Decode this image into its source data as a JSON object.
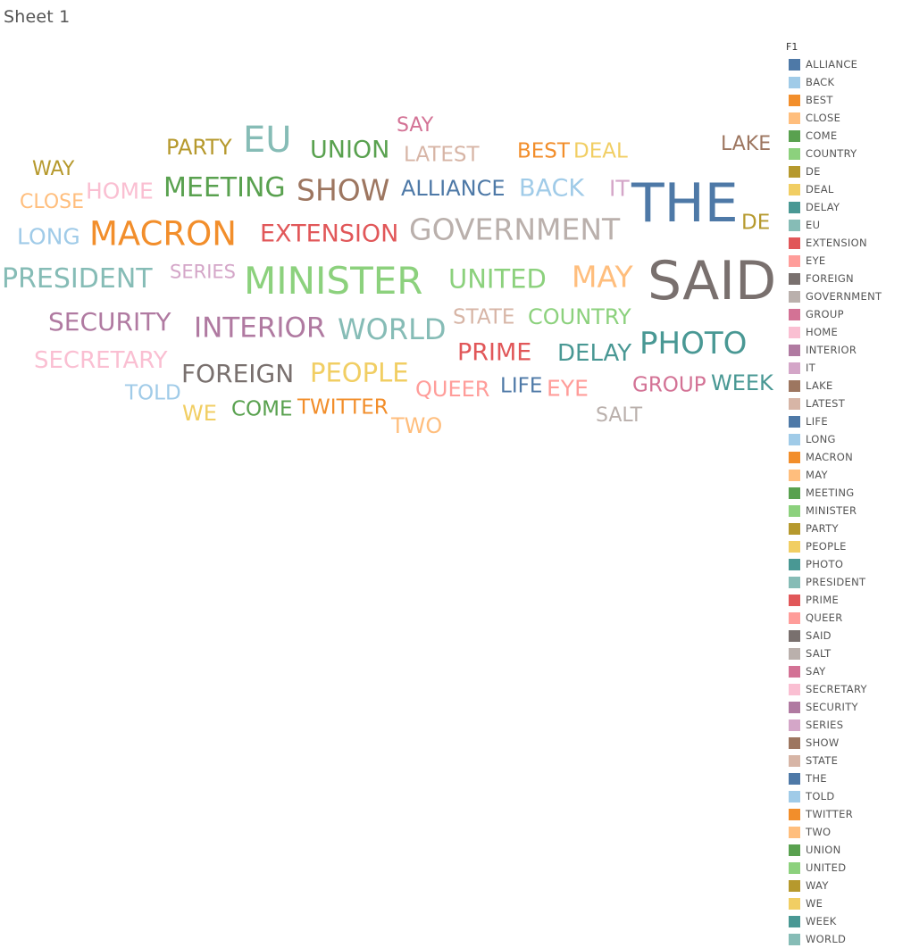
{
  "sheet": {
    "title": "Sheet 1"
  },
  "legend": {
    "title": "F1",
    "items": [
      {
        "label": "ALLIANCE",
        "color": "#4e79a7"
      },
      {
        "label": "BACK",
        "color": "#a0cbe8"
      },
      {
        "label": "BEST",
        "color": "#f28e2b"
      },
      {
        "label": "CLOSE",
        "color": "#ffbe7d"
      },
      {
        "label": "COME",
        "color": "#59a14f"
      },
      {
        "label": "COUNTRY",
        "color": "#8cd17d"
      },
      {
        "label": "DE",
        "color": "#b6992d"
      },
      {
        "label": "DEAL",
        "color": "#f1ce63"
      },
      {
        "label": "DELAY",
        "color": "#499894"
      },
      {
        "label": "EU",
        "color": "#86bcb6"
      },
      {
        "label": "EXTENSION",
        "color": "#e15759"
      },
      {
        "label": "EYE",
        "color": "#ff9d9a"
      },
      {
        "label": "FOREIGN",
        "color": "#79706e"
      },
      {
        "label": "GOVERNMENT",
        "color": "#bab0ac"
      },
      {
        "label": "GROUP",
        "color": "#d37295"
      },
      {
        "label": "HOME",
        "color": "#fabfd2"
      },
      {
        "label": "INTERIOR",
        "color": "#b07aa1"
      },
      {
        "label": "IT",
        "color": "#d4a6c8"
      },
      {
        "label": "LAKE",
        "color": "#9d7660"
      },
      {
        "label": "LATEST",
        "color": "#d7b5a6"
      },
      {
        "label": "LIFE",
        "color": "#4e79a7"
      },
      {
        "label": "LONG",
        "color": "#a0cbe8"
      },
      {
        "label": "MACRON",
        "color": "#f28e2b"
      },
      {
        "label": "MAY",
        "color": "#ffbe7d"
      },
      {
        "label": "MEETING",
        "color": "#59a14f"
      },
      {
        "label": "MINISTER",
        "color": "#8cd17d"
      },
      {
        "label": "PARTY",
        "color": "#b6992d"
      },
      {
        "label": "PEOPLE",
        "color": "#f1ce63"
      },
      {
        "label": "PHOTO",
        "color": "#499894"
      },
      {
        "label": "PRESIDENT",
        "color": "#86bcb6"
      },
      {
        "label": "PRIME",
        "color": "#e15759"
      },
      {
        "label": "QUEER",
        "color": "#ff9d9a"
      },
      {
        "label": "SAID",
        "color": "#79706e"
      },
      {
        "label": "SALT",
        "color": "#bab0ac"
      },
      {
        "label": "SAY",
        "color": "#d37295"
      },
      {
        "label": "SECRETARY",
        "color": "#fabfd2"
      },
      {
        "label": "SECURITY",
        "color": "#b07aa1"
      },
      {
        "label": "SERIES",
        "color": "#d4a6c8"
      },
      {
        "label": "SHOW",
        "color": "#9d7660"
      },
      {
        "label": "STATE",
        "color": "#d7b5a6"
      },
      {
        "label": "THE",
        "color": "#4e79a7"
      },
      {
        "label": "TOLD",
        "color": "#a0cbe8"
      },
      {
        "label": "TWITTER",
        "color": "#f28e2b"
      },
      {
        "label": "TWO",
        "color": "#ffbe7d"
      },
      {
        "label": "UNION",
        "color": "#59a14f"
      },
      {
        "label": "UNITED",
        "color": "#8cd17d"
      },
      {
        "label": "WAY",
        "color": "#b6992d"
      },
      {
        "label": "WE",
        "color": "#f1ce63"
      },
      {
        "label": "WEEK",
        "color": "#499894"
      },
      {
        "label": "WORLD",
        "color": "#86bcb6"
      }
    ]
  },
  "chart_data": {
    "type": "word-cloud",
    "legend_field": "F1",
    "legend_placement": "right",
    "words": [
      {
        "word": "ALLIANCE",
        "color": "#4e79a7"
      },
      {
        "word": "BACK",
        "color": "#a0cbe8"
      },
      {
        "word": "BEST",
        "color": "#f28e2b"
      },
      {
        "word": "CLOSE",
        "color": "#ffbe7d"
      },
      {
        "word": "COME",
        "color": "#59a14f"
      },
      {
        "word": "COUNTRY",
        "color": "#8cd17d"
      },
      {
        "word": "DE",
        "color": "#b6992d"
      },
      {
        "word": "DEAL",
        "color": "#f1ce63"
      },
      {
        "word": "DELAY",
        "color": "#499894"
      },
      {
        "word": "EU",
        "color": "#86bcb6"
      },
      {
        "word": "EXTENSION",
        "color": "#e15759"
      },
      {
        "word": "EYE",
        "color": "#ff9d9a"
      },
      {
        "word": "FOREIGN",
        "color": "#79706e"
      },
      {
        "word": "GOVERNMENT",
        "color": "#bab0ac"
      },
      {
        "word": "GROUP",
        "color": "#d37295"
      },
      {
        "word": "HOME",
        "color": "#fabfd2"
      },
      {
        "word": "INTERIOR",
        "color": "#b07aa1"
      },
      {
        "word": "IT",
        "color": "#d4a6c8"
      },
      {
        "word": "LAKE",
        "color": "#9d7660"
      },
      {
        "word": "LATEST",
        "color": "#d7b5a6"
      },
      {
        "word": "LIFE",
        "color": "#4e79a7"
      },
      {
        "word": "LONG",
        "color": "#a0cbe8"
      },
      {
        "word": "MACRON",
        "color": "#f28e2b"
      },
      {
        "word": "MAY",
        "color": "#ffbe7d"
      },
      {
        "word": "MEETING",
        "color": "#59a14f"
      },
      {
        "word": "MINISTER",
        "color": "#8cd17d"
      },
      {
        "word": "PARTY",
        "color": "#b6992d"
      },
      {
        "word": "PEOPLE",
        "color": "#f1ce63"
      },
      {
        "word": "PHOTO",
        "color": "#499894"
      },
      {
        "word": "PRESIDENT",
        "color": "#86bcb6"
      },
      {
        "word": "PRIME",
        "color": "#e15759"
      },
      {
        "word": "QUEER",
        "color": "#ff9d9a"
      },
      {
        "word": "SAID",
        "color": "#79706e"
      },
      {
        "word": "SALT",
        "color": "#bab0ac"
      },
      {
        "word": "SAY",
        "color": "#d37295"
      },
      {
        "word": "SECRETARY",
        "color": "#fabfd2"
      },
      {
        "word": "SECURITY",
        "color": "#b07aa1"
      },
      {
        "word": "SERIES",
        "color": "#d4a6c8"
      },
      {
        "word": "SHOW",
        "color": "#9d7660"
      },
      {
        "word": "STATE",
        "color": "#d7b5a6"
      },
      {
        "word": "THE",
        "color": "#4e79a7"
      },
      {
        "word": "TOLD",
        "color": "#a0cbe8"
      },
      {
        "word": "TWITTER",
        "color": "#f28e2b"
      },
      {
        "word": "TWO",
        "color": "#ffbe7d"
      },
      {
        "word": "UNION",
        "color": "#59a14f"
      },
      {
        "word": "UNITED",
        "color": "#8cd17d"
      },
      {
        "word": "WAY",
        "color": "#b6992d"
      },
      {
        "word": "WE",
        "color": "#f1ce63"
      },
      {
        "word": "WEEK",
        "color": "#499894"
      },
      {
        "word": "WORLD",
        "color": "#86bcb6"
      }
    ]
  }
}
